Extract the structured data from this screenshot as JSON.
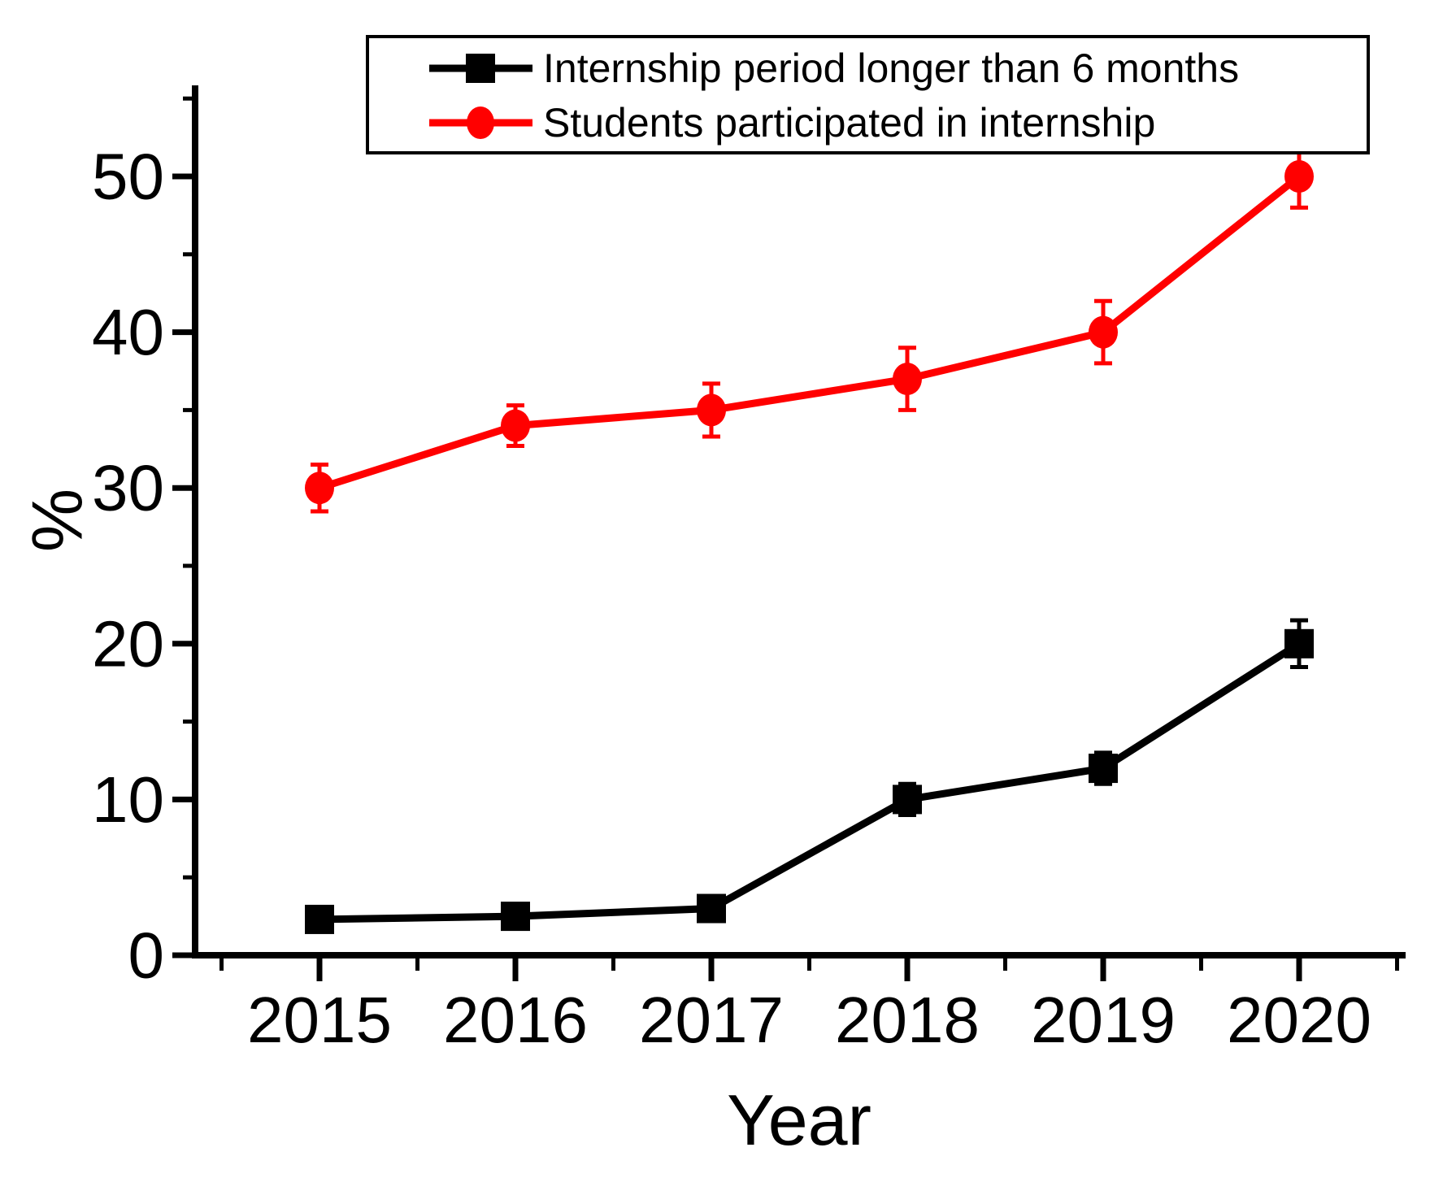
{
  "figure": {
    "background": "#ffffff",
    "accent_black": "#000000",
    "accent_red": "#ff0000"
  },
  "chart_data": {
    "type": "line",
    "x": [
      2015,
      2016,
      2017,
      2018,
      2019,
      2020
    ],
    "xlabel": "Year",
    "ylabel": "%",
    "xlim": [
      2014.3,
      2020.55
    ],
    "ylim": [
      0,
      55
    ],
    "yticks": [
      0,
      10,
      20,
      30,
      40,
      50
    ],
    "yminorticks": [
      5,
      15,
      25,
      35,
      45,
      55
    ],
    "xminorticks": [
      2014.5,
      2015.5,
      2016.5,
      2017.5,
      2018.5,
      2019.5,
      2020.5
    ],
    "grid": false,
    "legend": {
      "position": "top",
      "border": true,
      "entries": [
        "Internship period longer than 6 months",
        "Students participated in internship"
      ]
    },
    "series": [
      {
        "name": "Internship period longer than 6 months",
        "color": "#000000",
        "marker": "square",
        "values": [
          2.3,
          2.5,
          3,
          10,
          12,
          20
        ],
        "errors": [
          0.5,
          0.5,
          0.5,
          1,
          1,
          1.5
        ]
      },
      {
        "name": "Students participated in internship",
        "color": "#ff0000",
        "marker": "circle",
        "values": [
          30,
          34,
          35,
          37,
          40,
          50
        ],
        "errors": [
          1.5,
          1.3,
          1.7,
          2,
          2,
          2
        ]
      }
    ]
  }
}
